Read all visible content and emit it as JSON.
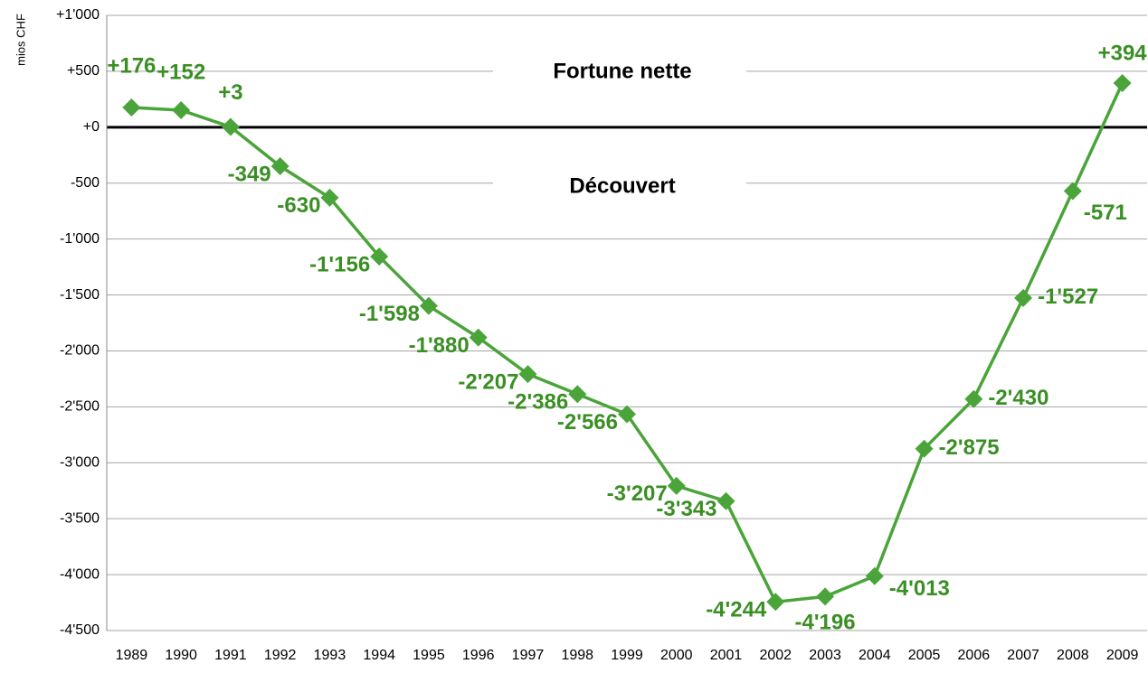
{
  "chart_data": {
    "type": "line",
    "y_axis_label": "mios CHF",
    "annotations": [
      "Fortune nette",
      "Découvert"
    ],
    "categories": [
      "1989",
      "1990",
      "1991",
      "1992",
      "1993",
      "1994",
      "1995",
      "1996",
      "1997",
      "1998",
      "1999",
      "2000",
      "2001",
      "2002",
      "2003",
      "2004",
      "2005",
      "2006",
      "2007",
      "2008",
      "2009"
    ],
    "series": [
      {
        "name": null,
        "color": "#4aa43a",
        "label_color": "#3a8f24",
        "values": [
          176,
          152,
          3,
          -349,
          -630,
          -1156,
          -1598,
          -1880,
          -2207,
          -2386,
          -2566,
          -3207,
          -3343,
          -4244,
          -4196,
          -4013,
          -2875,
          -2430,
          -1527,
          -571,
          394
        ],
        "value_labels": [
          "+176",
          "+152",
          "+3",
          "-349",
          "-630",
          "-1'156",
          "-1'598",
          "-1'880",
          "-2'207",
          "-2'386",
          "-2'566",
          "-3'207",
          "-3'343",
          "-4'244",
          "-4'196",
          "-4'013",
          "-2'875",
          "-2'430",
          "-1'527",
          "-571",
          "+394"
        ]
      }
    ],
    "ylim": [
      -4500,
      1000
    ],
    "yticks": [
      {
        "value": 1000,
        "label": "+1'000"
      },
      {
        "value": 500,
        "label": "+500"
      },
      {
        "value": 0,
        "label": "+0"
      },
      -500,
      {
        "value": -1000,
        "label": "-1'000"
      },
      {
        "value": -1500,
        "label": "-1'500"
      },
      {
        "value": -2000,
        "label": "-2'000"
      },
      {
        "value": -2500,
        "label": "-2'500"
      },
      {
        "value": -3000,
        "label": "-3'000"
      },
      {
        "value": -3500,
        "label": "-3'500"
      },
      {
        "value": -4000,
        "label": "-4'000"
      },
      {
        "value": -4500,
        "label": "-4'500"
      }
    ],
    "grid": true
  }
}
